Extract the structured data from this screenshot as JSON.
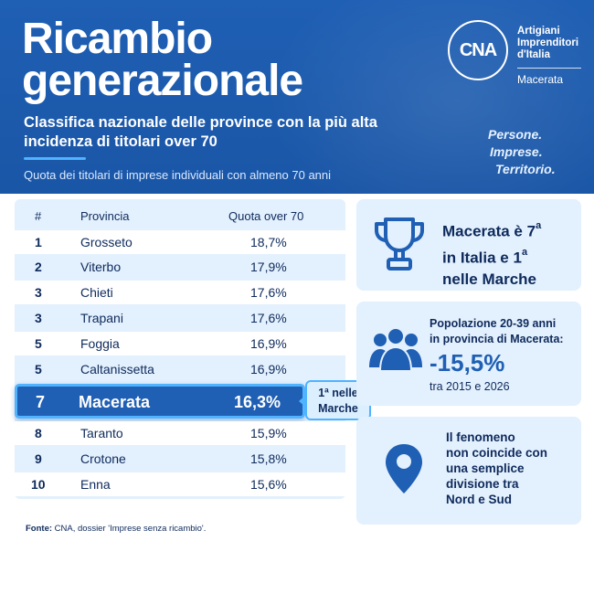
{
  "header": {
    "title_line1": "Ricambio",
    "title_line2": "generazionale",
    "subtitle_line1": "Classifica nazionale delle province con la più alta",
    "subtitle_line2": "incidenza di titolari over 70",
    "note": "Quota dei titolari di imprese individuali con almeno 70 anni",
    "motto_line1": "Persone.",
    "motto_line2": "Imprese.",
    "motto_line3": "Territorio."
  },
  "logo": {
    "mark": "CNA",
    "line1": "Artigiani",
    "line2": "Imprenditori",
    "line3": "d'Italia",
    "city": "Macerata"
  },
  "table": {
    "headers": [
      "#",
      "Provincia",
      "Quota over 70"
    ],
    "rows": [
      {
        "rank": "1",
        "name": "Grosseto",
        "value": "18,7%"
      },
      {
        "rank": "2",
        "name": "Viterbo",
        "value": "17,9%"
      },
      {
        "rank": "3",
        "name": "Chieti",
        "value": "17,6%"
      },
      {
        "rank": "3",
        "name": "Trapani",
        "value": "17,6%"
      },
      {
        "rank": "5",
        "name": "Foggia",
        "value": "16,9%"
      },
      {
        "rank": "5",
        "name": "Caltanissetta",
        "value": "16,9%"
      }
    ],
    "highlight": {
      "rank": "7",
      "name": "Macerata",
      "value": "16,3%"
    },
    "rows_after": [
      {
        "rank": "8",
        "name": "Taranto",
        "value": "15,9%"
      },
      {
        "rank": "9",
        "name": "Crotone",
        "value": "15,8%"
      },
      {
        "rank": "10",
        "name": "Enna",
        "value": "15,6%"
      }
    ],
    "callout_line1": "1ª nelle",
    "callout_line2": "Marche"
  },
  "cards": {
    "ranking": {
      "line1_a": "Macerata è 7",
      "line1_sup": "a",
      "line2_a": "in Italia e 1",
      "line2_sup": "a",
      "line3": "nelle Marche",
      "icon": "trophy-icon"
    },
    "population": {
      "line1": "Popolazione 20-39 anni",
      "line2": "in provincia di Macerata:",
      "value": "-15,5%",
      "period": "tra 2015 e 2026",
      "icon": "people-icon"
    },
    "phenomenon": {
      "line1": "Il fenomeno",
      "line2": "non coincide con",
      "line3": "una semplice",
      "line4": "divisione tra",
      "line5": "Nord e Sud",
      "icon": "map-pin-icon"
    }
  },
  "footer": {
    "label": "Fonte:",
    "text": " CNA, dossier 'Imprese senza ricambio'."
  },
  "colors": {
    "primary": "#1f5fb4",
    "accent": "#4fb3ff",
    "panel": "#e3f0fd",
    "text": "#0e2a5c"
  }
}
